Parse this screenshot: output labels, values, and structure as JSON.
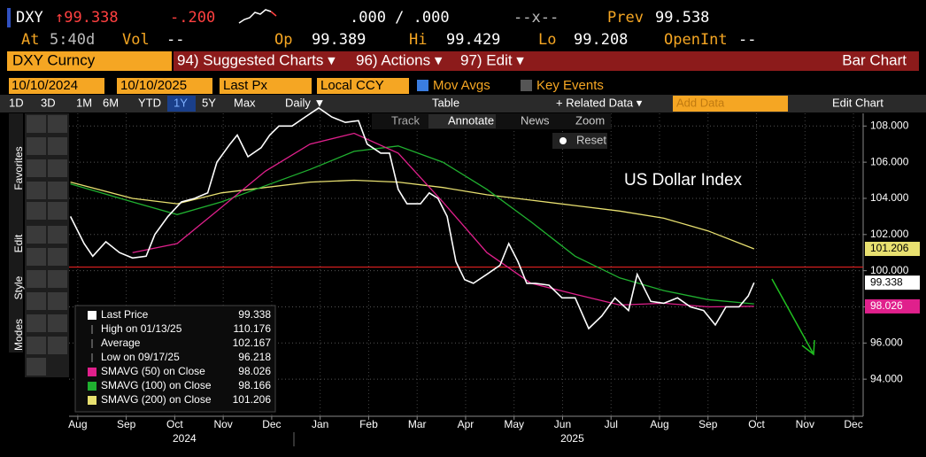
{
  "header": {
    "ticker": "DXY",
    "price": "↑99.338",
    "change": "-.200",
    "bidask": ".000 / .000",
    "spread": "--x--",
    "prev_label": "Prev",
    "prev": "99.538",
    "at_label": "At",
    "time": "5:40d",
    "vol_label": "Vol",
    "vol": "--",
    "op_label": "Op",
    "op": "99.389",
    "hi_label": "Hi",
    "hi": "99.429",
    "lo_label": "Lo",
    "lo": "99.208",
    "oi_label": "OpenInt",
    "oi": "--"
  },
  "menu": {
    "security": "DXY Curncy",
    "items": [
      "94) Suggested Charts ▾",
      "96) Actions ▾",
      "97) Edit ▾"
    ],
    "right": "Bar Chart"
  },
  "controls": {
    "start": "10/10/2024",
    "end": "10/10/2025",
    "field": "Last Px",
    "currency": "Local CCY",
    "mov_avgs": "Mov Avgs",
    "key_events": "Key Events"
  },
  "toolbar": {
    "periods": [
      "1D",
      "3D",
      "1M",
      "6M",
      "YTD",
      "1Y",
      "5Y",
      "Max"
    ],
    "frequency": "Daily ▼",
    "table": "Table",
    "related": "+ Related Data ▾",
    "add_data": "Add Data",
    "edit_chart": "Edit Chart"
  },
  "chart_tools": {
    "track": "Track",
    "annotate": "Annotate",
    "news": "News",
    "zoom": "Zoom",
    "reset": "Reset"
  },
  "side_tabs": [
    "Favorites",
    "Edit",
    "Style",
    "Modes"
  ],
  "chart_data": {
    "type": "line",
    "title": "US Dollar Index",
    "xlim": [
      -0.18,
      16.2
    ],
    "xticks": [
      {
        "value": 0,
        "label": "Aug"
      },
      {
        "value": 1,
        "label": "Sep"
      },
      {
        "value": 2,
        "label": "Oct"
      },
      {
        "value": 3,
        "label": "Nov"
      },
      {
        "value": 4,
        "label": "Dec"
      },
      {
        "value": 5,
        "label": "Jan"
      },
      {
        "value": 6,
        "label": "Feb"
      },
      {
        "value": 7,
        "label": "Mar"
      },
      {
        "value": 8,
        "label": "Apr"
      },
      {
        "value": 9,
        "label": "May"
      },
      {
        "value": 10,
        "label": "Jun"
      },
      {
        "value": 11,
        "label": "Jul"
      },
      {
        "value": 12,
        "label": "Aug"
      },
      {
        "value": 13,
        "label": "Sep"
      },
      {
        "value": 14,
        "label": "Oct"
      },
      {
        "value": 15,
        "label": "Nov"
      },
      {
        "value": 16,
        "label": "Dec"
      }
    ],
    "year_labels": [
      {
        "value": 2.2,
        "label": "2024"
      },
      {
        "value": 10.2,
        "label": "2025"
      }
    ],
    "ylim": [
      91.95,
      108.7
    ],
    "yticks": [
      {
        "value": 94,
        "label": "94.000"
      },
      {
        "value": 96,
        "label": "96.000"
      },
      {
        "value": 98,
        "label": "98.000"
      },
      {
        "value": 100,
        "label": "100.000"
      },
      {
        "value": 102,
        "label": "102.000"
      },
      {
        "value": 104,
        "label": "104.000"
      },
      {
        "value": 106,
        "label": "106.000"
      },
      {
        "value": 108,
        "label": "108.000"
      }
    ],
    "grid": true,
    "hline": {
      "value": 100.2,
      "color": "#e02020"
    },
    "series": [
      {
        "name": "Last Price",
        "color": "#ffffff",
        "x": [
          -0.15,
          0.13,
          0.31,
          0.58,
          0.86,
          1.13,
          1.41,
          1.59,
          1.86,
          2.14,
          2.41,
          2.68,
          2.87,
          3.14,
          3.29,
          3.51,
          3.78,
          3.96,
          4.15,
          4.42,
          4.69,
          4.97,
          5.24,
          5.52,
          5.79,
          5.97,
          6.25,
          6.43,
          6.61,
          6.79,
          7.07,
          7.25,
          7.43,
          7.62,
          7.8,
          7.98,
          8.16,
          8.44,
          8.71,
          8.89,
          9.08,
          9.26,
          9.44,
          9.72,
          9.99,
          10.26,
          10.54,
          10.81,
          11.08,
          11.36,
          11.54,
          11.82,
          12.09,
          12.37,
          12.64,
          12.91,
          13.15,
          13.37,
          13.64,
          13.83,
          13.95
        ],
        "values": [
          103.0,
          101.5,
          100.8,
          101.6,
          101.0,
          100.7,
          100.8,
          102.0,
          103.0,
          103.8,
          104.0,
          104.3,
          106.0,
          107.0,
          107.5,
          106.3,
          106.8,
          107.5,
          108.0,
          108.0,
          108.5,
          109.0,
          108.5,
          108.2,
          108.3,
          107.0,
          106.5,
          106.5,
          104.5,
          103.7,
          103.7,
          104.3,
          104.0,
          103.0,
          100.5,
          99.5,
          99.3,
          99.8,
          100.3,
          101.5,
          100.5,
          99.3,
          99.3,
          99.2,
          98.5,
          98.5,
          96.8,
          97.5,
          98.5,
          97.8,
          99.8,
          98.3,
          98.2,
          98.5,
          98.0,
          97.8,
          97.0,
          98.0,
          98.0,
          98.6,
          99.338
        ]
      },
      {
        "name": "SMAVG (50)  on Close",
        "color": "#e0208c",
        "x": [
          -0.15,
          1.13,
          2.05,
          2.96,
          3.87,
          4.79,
          5.7,
          6.61,
          7.53,
          8.44,
          9.35,
          10.26,
          11.18,
          12.09,
          13.0,
          13.95
        ],
        "values": [
          null,
          101.0,
          101.5,
          103.5,
          105.5,
          107.0,
          107.6,
          106.5,
          103.8,
          101.0,
          99.3,
          98.7,
          98.1,
          98.2,
          98.0,
          98.026
        ]
      },
      {
        "name": "SMAVG (100)  on Close",
        "color": "#20b030",
        "x": [
          -0.15,
          1.13,
          2.05,
          2.96,
          3.87,
          4.79,
          5.7,
          6.61,
          7.53,
          8.44,
          9.35,
          10.26,
          11.18,
          12.09,
          13.0,
          13.95
        ],
        "values": [
          104.8,
          103.8,
          103.1,
          103.8,
          104.7,
          105.6,
          106.6,
          106.9,
          106.0,
          104.5,
          102.7,
          100.8,
          99.6,
          98.9,
          98.4,
          98.166
        ]
      },
      {
        "name": "SMAVG (200)  on Close",
        "color": "#e8e070",
        "x": [
          -0.15,
          1.13,
          2.05,
          2.96,
          3.87,
          4.79,
          5.7,
          6.61,
          7.53,
          8.44,
          9.35,
          10.26,
          11.18,
          12.09,
          13.0,
          13.95
        ],
        "values": [
          104.9,
          104.0,
          103.7,
          104.3,
          104.6,
          104.9,
          105.0,
          104.9,
          104.6,
          104.2,
          103.9,
          103.6,
          103.3,
          102.9,
          102.2,
          101.206
        ]
      }
    ],
    "stats": [
      {
        "label": "High on 01/13/25",
        "value": 110.176
      },
      {
        "label": "Average",
        "value": 102.167
      },
      {
        "label": "Low on 09/17/25",
        "value": 96.218
      }
    ]
  }
}
